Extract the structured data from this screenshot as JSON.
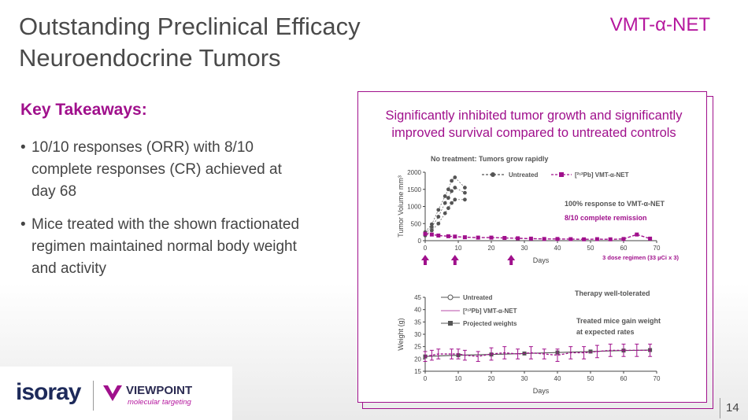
{
  "title": "Outstanding Preclinical Efficacy",
  "subtitle": "Neuroendocrine Tumors",
  "brand": "VMT-α-NET",
  "key_takeaways_heading": "Key Takeaways:",
  "bullets": [
    "10/10 responses (ORR) with 8/10 complete responses (CR) achieved at day 68",
    "Mice treated with the shown fractionated regimen maintained normal body weight and activity"
  ],
  "headline": "Significantly inhibited tumor growth and significantly improved survival compared to untreated controls",
  "page_number": "14",
  "logos": {
    "isoray": "isoray",
    "viewpoint": "VIEWPOINT",
    "viewpoint_sub": "molecular targeting"
  },
  "colors": {
    "accent": "#a0108c",
    "dark": "#555555",
    "title": "#4a4a4a"
  },
  "chart_data": [
    {
      "type": "line",
      "title": "No treatment: Tumors grow rapidly",
      "xlabel": "Days",
      "ylabel": "Tumor Volume mm³",
      "xlim": [
        0,
        70
      ],
      "ylim": [
        0,
        2000
      ],
      "xticks": [
        "0",
        "10",
        "20",
        "30",
        "40",
        "50",
        "60",
        "70"
      ],
      "yticks": [
        "0",
        "500",
        "1000",
        "1500",
        "2000"
      ],
      "legend": [
        "Untreated",
        "[²¹²Pb] VMT-α-NET"
      ],
      "annotations": [
        "100% response to VMT-α-NET",
        "8/10 complete remission",
        "3 dose regimen (33 µCi x 3)"
      ],
      "dose_days": [
        0,
        9,
        26
      ],
      "series": [
        {
          "name": "Untreated",
          "x": [
            0,
            2,
            4,
            6,
            7,
            8,
            9,
            12
          ],
          "y_groups": [
            [
              150,
              200,
              250
            ],
            [
              300,
              400,
              480
            ],
            [
              500,
              700,
              900
            ],
            [
              800,
              1100,
              1300
            ],
            [
              950,
              1250,
              1500
            ],
            [
              1100,
              1450,
              1750
            ],
            [
              1200,
              1550,
              1850
            ],
            [
              1200,
              1400,
              1550
            ]
          ]
        },
        {
          "name": "[²¹²Pb] VMT-α-NET",
          "x": [
            0,
            2,
            4,
            7,
            9,
            12,
            16,
            20,
            24,
            28,
            32,
            36,
            40,
            44,
            48,
            52,
            56,
            60,
            64,
            68
          ],
          "y": [
            200,
            180,
            150,
            130,
            120,
            100,
            90,
            90,
            80,
            70,
            60,
            50,
            50,
            45,
            40,
            45,
            40,
            50,
            180,
            60
          ]
        }
      ]
    },
    {
      "type": "line",
      "title": "",
      "xlabel": "Days",
      "ylabel": "Weight (g)",
      "xlim": [
        0,
        70
      ],
      "ylim": [
        15,
        45
      ],
      "xticks": [
        "0",
        "10",
        "20",
        "30",
        "40",
        "50",
        "60",
        "70"
      ],
      "yticks": [
        "15",
        "20",
        "25",
        "30",
        "35",
        "40",
        "45"
      ],
      "legend": [
        "Untreated",
        "[²¹²Pb] VMT-α-NET",
        "Projected weights"
      ],
      "annotations": [
        "Therapy well-tolerated",
        "Treated mice gain weight at expected rates"
      ],
      "series": [
        {
          "name": "[²¹²Pb] VMT-α-NET",
          "x": [
            0,
            2,
            4,
            8,
            10,
            12,
            16,
            20,
            24,
            28,
            32,
            36,
            40,
            44,
            48,
            52,
            56,
            60,
            64,
            68
          ],
          "y": [
            21,
            21.5,
            22,
            22,
            22,
            21.5,
            21,
            22,
            22.5,
            22,
            22.5,
            22,
            21.5,
            22.5,
            22.5,
            23,
            23.5,
            23.5,
            23.5,
            23.5
          ],
          "err": [
            2,
            2,
            2,
            2,
            2,
            2,
            2,
            2.5,
            2.5,
            2,
            2.5,
            2,
            2.5,
            2.5,
            2.5,
            2.5,
            2.5,
            2.5,
            2.5,
            2.5
          ]
        },
        {
          "name": "Projected weights",
          "x": [
            0,
            10,
            20,
            30,
            40,
            50,
            60,
            68
          ],
          "y": [
            21,
            21.5,
            21.8,
            22.2,
            22.6,
            23,
            23.4,
            23.6
          ]
        }
      ]
    }
  ]
}
